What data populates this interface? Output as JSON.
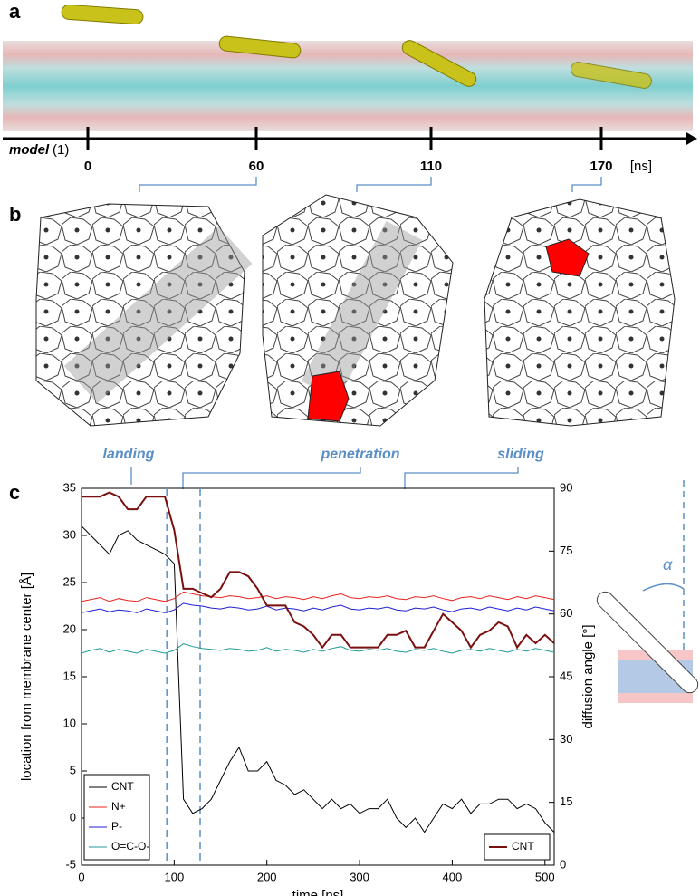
{
  "panels": {
    "a": "a",
    "b": "b",
    "c": "c"
  },
  "timeline": {
    "model": "model",
    "index": "(1)",
    "ticks": [
      0,
      60,
      110,
      170
    ],
    "unit": "[ns]"
  },
  "annotations": {
    "landing": "landing",
    "penetration": "penetration",
    "sliding": "sliding",
    "alpha": "α"
  },
  "chart_data": {
    "type": "line",
    "xlabel": "time [ns]",
    "ylabel": "location from membrane center [Å]",
    "y2label": "diffusion angle [°]",
    "x": [
      0,
      10,
      20,
      30,
      40,
      50,
      60,
      70,
      80,
      90,
      100,
      110,
      120,
      130,
      140,
      150,
      160,
      170,
      180,
      190,
      200,
      210,
      220,
      230,
      240,
      250,
      260,
      270,
      280,
      290,
      300,
      310,
      320,
      330,
      340,
      350,
      360,
      370,
      380,
      390,
      400,
      410,
      420,
      430,
      440,
      450,
      460,
      470,
      480,
      490,
      500,
      510
    ],
    "series": [
      {
        "name": "CNT",
        "color": "#000000",
        "values": [
          31,
          30,
          29,
          28,
          30,
          30.5,
          29.5,
          29,
          28.5,
          28,
          27,
          2,
          0.5,
          1,
          2,
          4,
          6,
          7.5,
          5,
          5,
          6,
          4,
          3.5,
          2.5,
          3,
          2,
          1,
          2,
          1,
          1.5,
          0.5,
          1,
          1,
          2,
          0,
          -1,
          0,
          -1.5,
          0,
          1.5,
          1,
          2,
          0.5,
          1.5,
          1.5,
          2,
          2,
          1,
          1.5,
          1,
          -0.5,
          -1.5
        ]
      },
      {
        "name": "N+",
        "color": "#e8231f",
        "values": [
          23,
          23.2,
          23.4,
          23,
          23.3,
          23.1,
          23,
          23.4,
          23.2,
          23,
          23.3,
          24,
          23.8,
          23.6,
          23.5,
          23.4,
          23.6,
          23.5,
          23.3,
          23.4,
          23.6,
          23.3,
          23.5,
          23.4,
          23.2,
          23.5,
          23.3,
          23.6,
          23.8,
          23.4,
          23.3,
          23.5,
          23.4,
          23.6,
          23.3,
          23.2,
          23.5,
          23.4,
          23.6,
          23.3,
          23.1,
          23.4,
          23.5,
          23.3,
          23.6,
          23.4,
          23.2,
          23.5,
          23.3,
          23.6,
          23.4,
          23.2
        ]
      },
      {
        "name": "P-",
        "color": "#1f1fd6",
        "values": [
          21.8,
          22,
          22.2,
          21.9,
          22.1,
          22,
          21.8,
          22.2,
          22,
          21.8,
          22.1,
          22.8,
          22.6,
          22.5,
          22.3,
          22.2,
          22.4,
          22.3,
          22.1,
          22.2,
          22.5,
          22.1,
          22.3,
          22.2,
          22,
          22.3,
          22.1,
          22.4,
          22.6,
          22.2,
          22.1,
          22.3,
          22.2,
          22.4,
          22.1,
          22,
          22.3,
          22.2,
          22.4,
          22.1,
          21.9,
          22.2,
          22.3,
          22.1,
          22.4,
          22.2,
          22,
          22.3,
          22.1,
          22.4,
          22.2,
          22
        ]
      },
      {
        "name": "O=C-O-",
        "color": "#1f9a96",
        "values": [
          17.5,
          17.8,
          18,
          17.6,
          17.9,
          17.7,
          17.5,
          17.9,
          17.7,
          17.5,
          17.8,
          18.5,
          18.2,
          18,
          17.9,
          17.8,
          18,
          17.9,
          17.7,
          17.8,
          18.1,
          17.7,
          17.9,
          17.8,
          17.6,
          17.9,
          17.7,
          18,
          18.2,
          17.8,
          17.7,
          17.9,
          17.8,
          18,
          17.7,
          17.6,
          17.9,
          17.8,
          18,
          17.7,
          17.5,
          17.8,
          17.9,
          17.7,
          18,
          17.8,
          17.6,
          17.9,
          17.7,
          18,
          17.8,
          17.6
        ]
      },
      {
        "name": "CNT",
        "color": "#7a0f0f",
        "axis": "y2",
        "values": [
          88,
          88,
          88,
          89,
          88,
          85,
          85,
          88,
          88,
          88,
          80,
          66,
          66,
          65,
          64,
          66,
          70,
          70,
          69,
          66,
          62,
          62,
          62,
          58,
          57,
          55,
          52,
          55,
          55,
          52,
          52,
          52,
          52,
          55,
          55,
          56,
          52,
          52,
          56,
          60,
          58,
          56,
          52,
          55,
          56,
          58,
          57,
          52,
          55,
          53,
          55,
          53
        ]
      }
    ],
    "xlim": [
      0,
      510
    ],
    "xticks": [
      0,
      100,
      200,
      300,
      400,
      500
    ],
    "ylim": [
      -5,
      35
    ],
    "yticks": [
      -5,
      0,
      5,
      10,
      15,
      20,
      25,
      30,
      35
    ],
    "y2lim": [
      0,
      90
    ],
    "y2ticks": [
      0,
      15,
      30,
      45,
      60,
      75,
      90
    ],
    "vlines": [
      92,
      128
    ],
    "legend": "lower left",
    "legend2": "lower right",
    "grid": false
  }
}
